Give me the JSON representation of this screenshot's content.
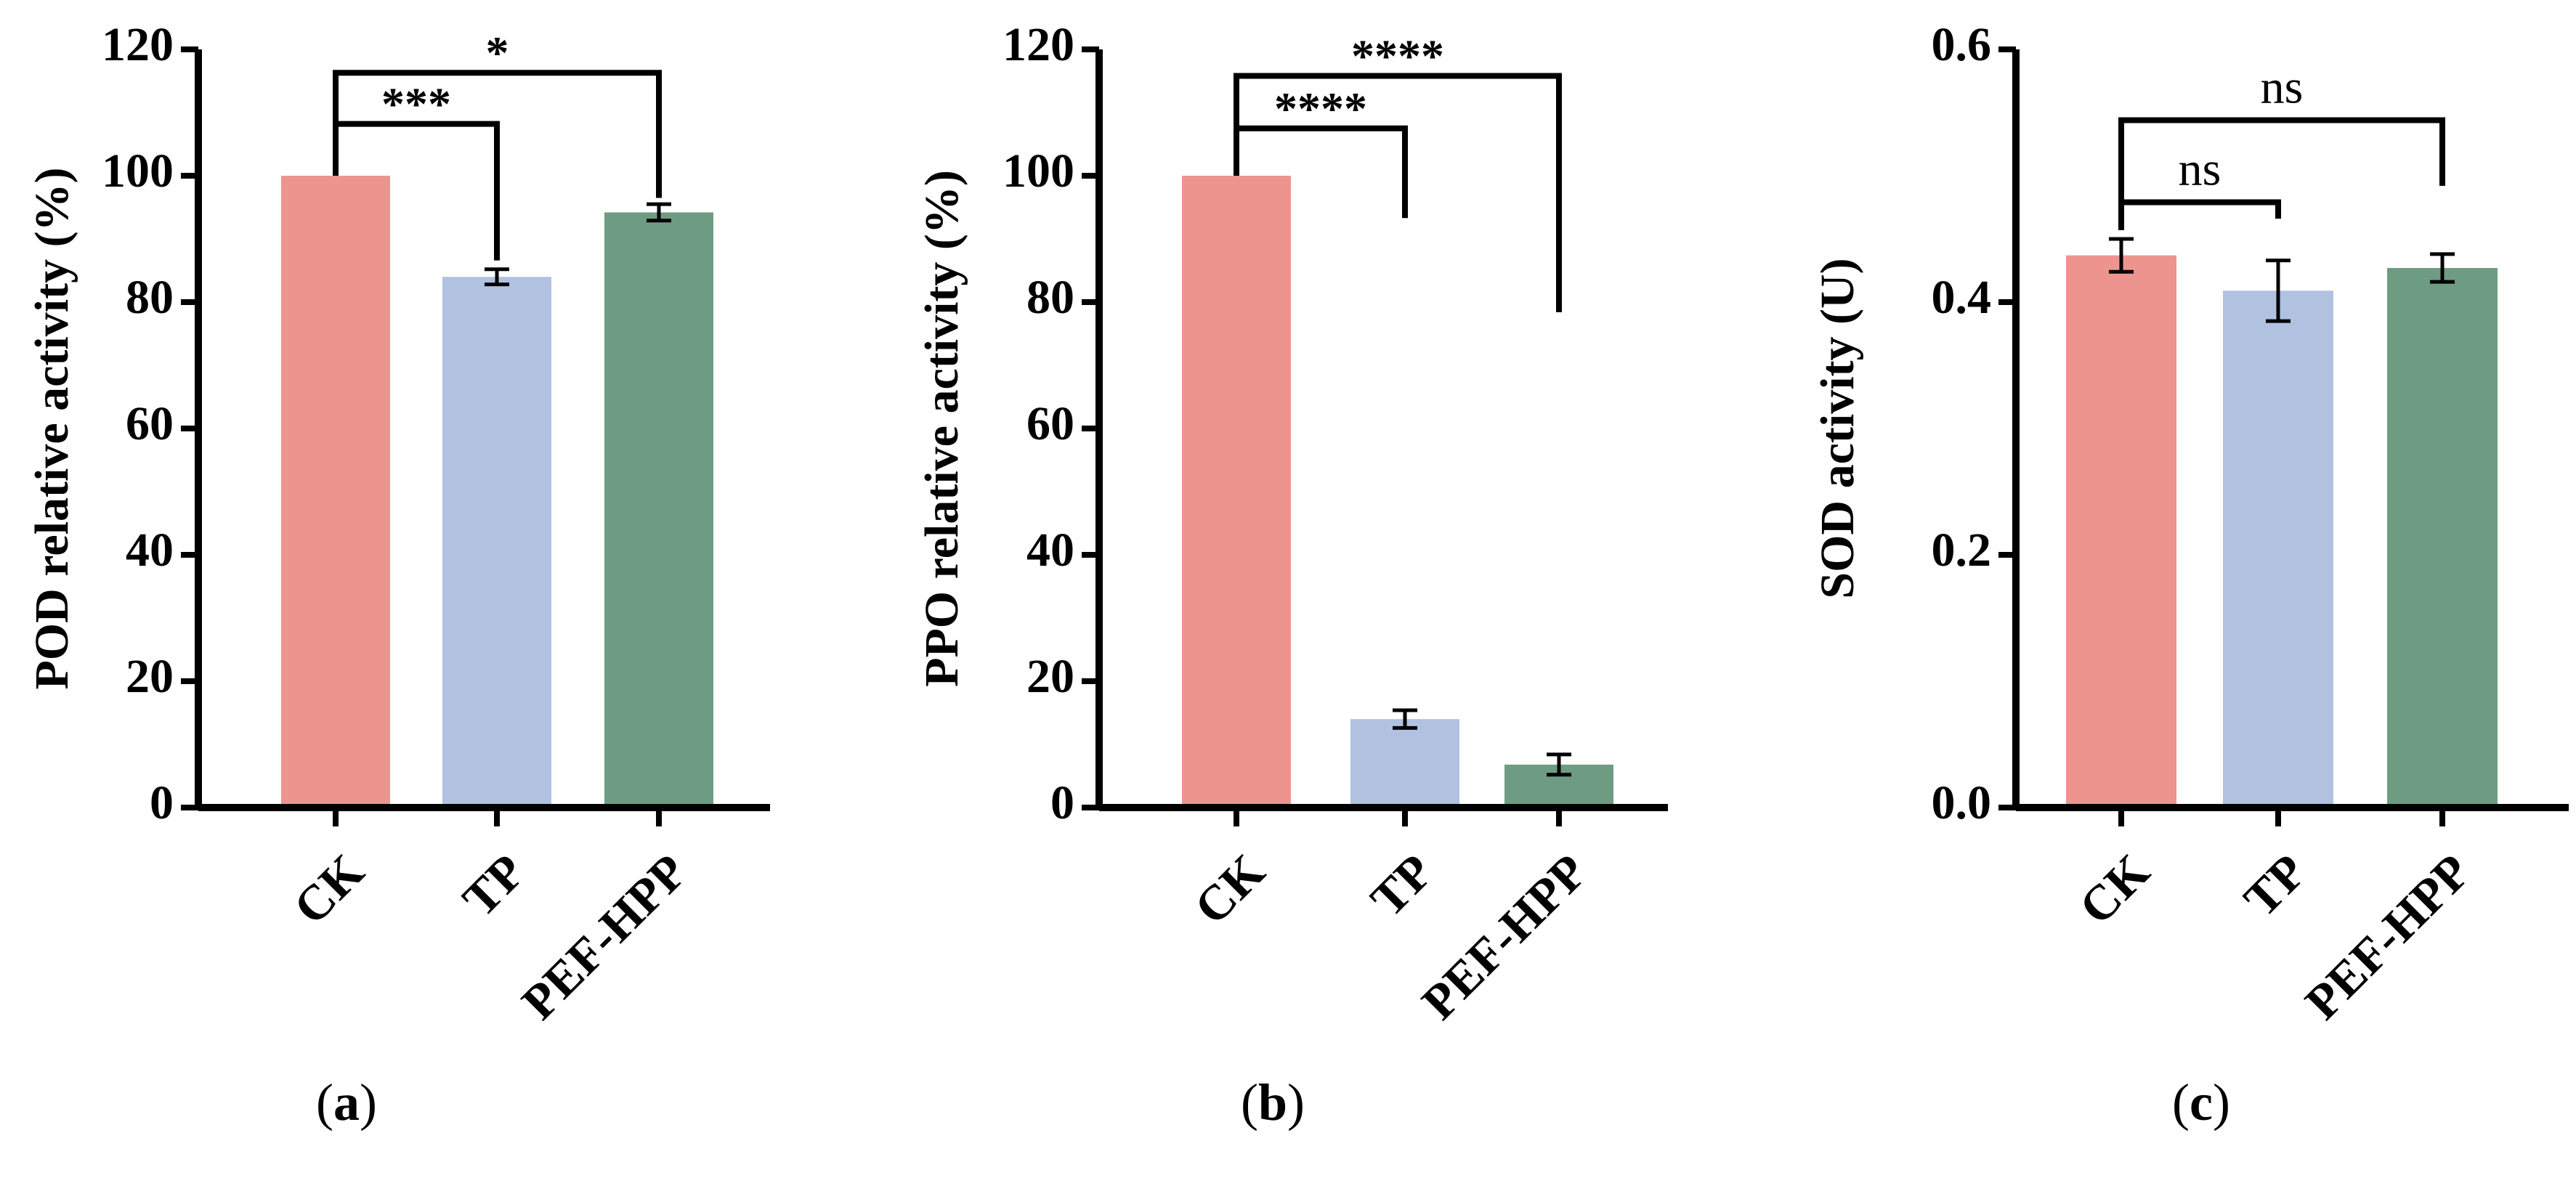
{
  "chart_data": [
    {
      "type": "bar",
      "panel_label": "a",
      "categories": [
        "CK",
        "TP",
        "PEF-HPP"
      ],
      "values": [
        100,
        84,
        94.2
      ],
      "errors": [
        0,
        1.2,
        1.3
      ],
      "colors": [
        "#EE948F",
        "#B0C2E0",
        "#6E9C83"
      ],
      "ylabel": "POD relative activity (%)",
      "ylim": [
        0,
        120
      ],
      "yticks": [
        0,
        20,
        40,
        60,
        80,
        100,
        120
      ],
      "tick_labels": [
        "0",
        "20",
        "40",
        "60",
        "80",
        "100",
        "120"
      ],
      "significance": [
        {
          "from": "CK",
          "to": "TP",
          "label": "***",
          "line_y": 108.2,
          "left_drop_to": 100,
          "right_drop_to": 86.6
        },
        {
          "from": "CK",
          "to": "PEF-HPP",
          "label": "*",
          "line_y": 116.3,
          "left_drop_to": 108.2,
          "right_drop_to": 96.5
        }
      ]
    },
    {
      "type": "bar",
      "panel_label": "b",
      "categories": [
        "CK",
        "TP",
        "PEF-HPP"
      ],
      "values": [
        100,
        14,
        6.8
      ],
      "errors": [
        0,
        1.4,
        1.6
      ],
      "colors": [
        "#EE948F",
        "#B0C2E0",
        "#6E9C83"
      ],
      "ylabel": "PPO relative activity (%)",
      "ylim": [
        0,
        120
      ],
      "yticks": [
        0,
        20,
        40,
        60,
        80,
        100,
        120
      ],
      "tick_labels": [
        "0",
        "20",
        "40",
        "60",
        "80",
        "100",
        "120"
      ],
      "significance": [
        {
          "from": "CK",
          "to": "TP",
          "label": "****",
          "line_y": 107.5,
          "left_drop_to": 100,
          "right_drop_to": 93.3
        },
        {
          "from": "CK",
          "to": "PEF-HPP",
          "label": "****",
          "line_y": 115.8,
          "left_drop_to": 107.5,
          "right_drop_to": 78.4
        }
      ]
    },
    {
      "type": "bar",
      "panel_label": "c",
      "categories": [
        "CK",
        "TP",
        "PEF-HPP"
      ],
      "values": [
        0.437,
        0.409,
        0.427
      ],
      "errors": [
        0.013,
        0.024,
        0.011
      ],
      "colors": [
        "#EE948F",
        "#B0C2E0",
        "#6E9C83"
      ],
      "ylabel": "SOD activity (U)",
      "ylim": [
        0,
        0.6
      ],
      "yticks": [
        0,
        0.2,
        0.4,
        0.6
      ],
      "tick_labels": [
        "0.0",
        "0.2",
        "0.4",
        "0.6"
      ],
      "significance": [
        {
          "from": "CK",
          "to": "TP",
          "label": "ns",
          "line_y": 0.479,
          "left_drop_to": 0.457,
          "right_drop_to": 0.466
        },
        {
          "from": "CK",
          "to": "PEF-HPP",
          "label": "ns",
          "line_y": 0.544,
          "left_drop_to": 0.479,
          "right_drop_to": 0.492
        }
      ]
    }
  ]
}
